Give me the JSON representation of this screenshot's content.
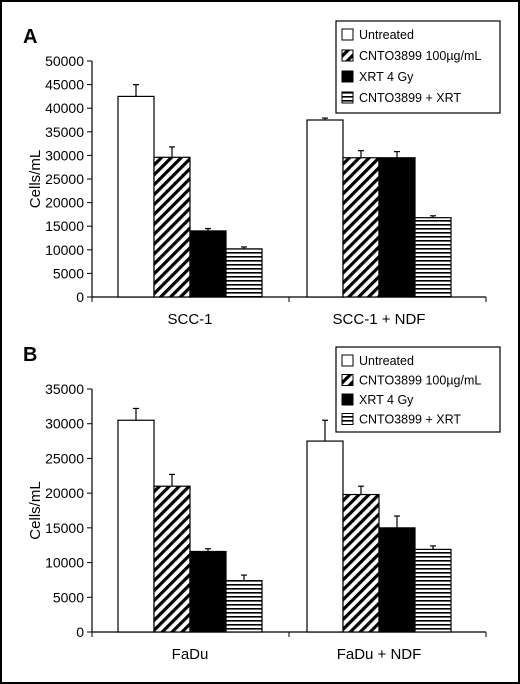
{
  "chart_data": [
    {
      "type": "bar",
      "panel": "A",
      "categories": [
        "SCC-1",
        "SCC-1 + NDF"
      ],
      "ylabel": "Cells/mL",
      "ylim": [
        0,
        50000
      ],
      "yticks": [
        0,
        5000,
        10000,
        15000,
        20000,
        25000,
        30000,
        35000,
        40000,
        45000,
        50000
      ],
      "legend_position": "top-right",
      "series": [
        {
          "name": "Untreated",
          "pattern": "white",
          "values": [
            42500,
            37500
          ],
          "errors": [
            2500,
            400
          ]
        },
        {
          "name": "CNTO3899 100µg/mL",
          "pattern": "diagonal",
          "values": [
            29600,
            29500
          ],
          "errors": [
            2200,
            1500
          ]
        },
        {
          "name": "XRT 4 Gy",
          "pattern": "black",
          "values": [
            14000,
            29500
          ],
          "errors": [
            500,
            1300
          ]
        },
        {
          "name": "CNTO3899 + XRT",
          "pattern": "horizontal",
          "values": [
            10200,
            16800
          ],
          "errors": [
            400,
            400
          ]
        }
      ]
    },
    {
      "type": "bar",
      "panel": "B",
      "categories": [
        "FaDu",
        "FaDu + NDF"
      ],
      "ylabel": "Cells/mL",
      "ylim": [
        0,
        35000
      ],
      "yticks": [
        0,
        5000,
        10000,
        15000,
        20000,
        25000,
        30000,
        35000
      ],
      "legend_position": "top-right",
      "series": [
        {
          "name": "Untreated",
          "pattern": "white",
          "values": [
            30500,
            27500
          ],
          "errors": [
            1700,
            3000
          ]
        },
        {
          "name": "CNTO3899 100µg/mL",
          "pattern": "diagonal",
          "values": [
            21000,
            19800
          ],
          "errors": [
            1700,
            1200
          ]
        },
        {
          "name": "XRT 4 Gy",
          "pattern": "black",
          "values": [
            11600,
            15000
          ],
          "errors": [
            400,
            1700
          ]
        },
        {
          "name": "CNTO3899 + XRT",
          "pattern": "horizontal",
          "values": [
            7400,
            11900
          ],
          "errors": [
            800,
            500
          ]
        }
      ]
    }
  ]
}
